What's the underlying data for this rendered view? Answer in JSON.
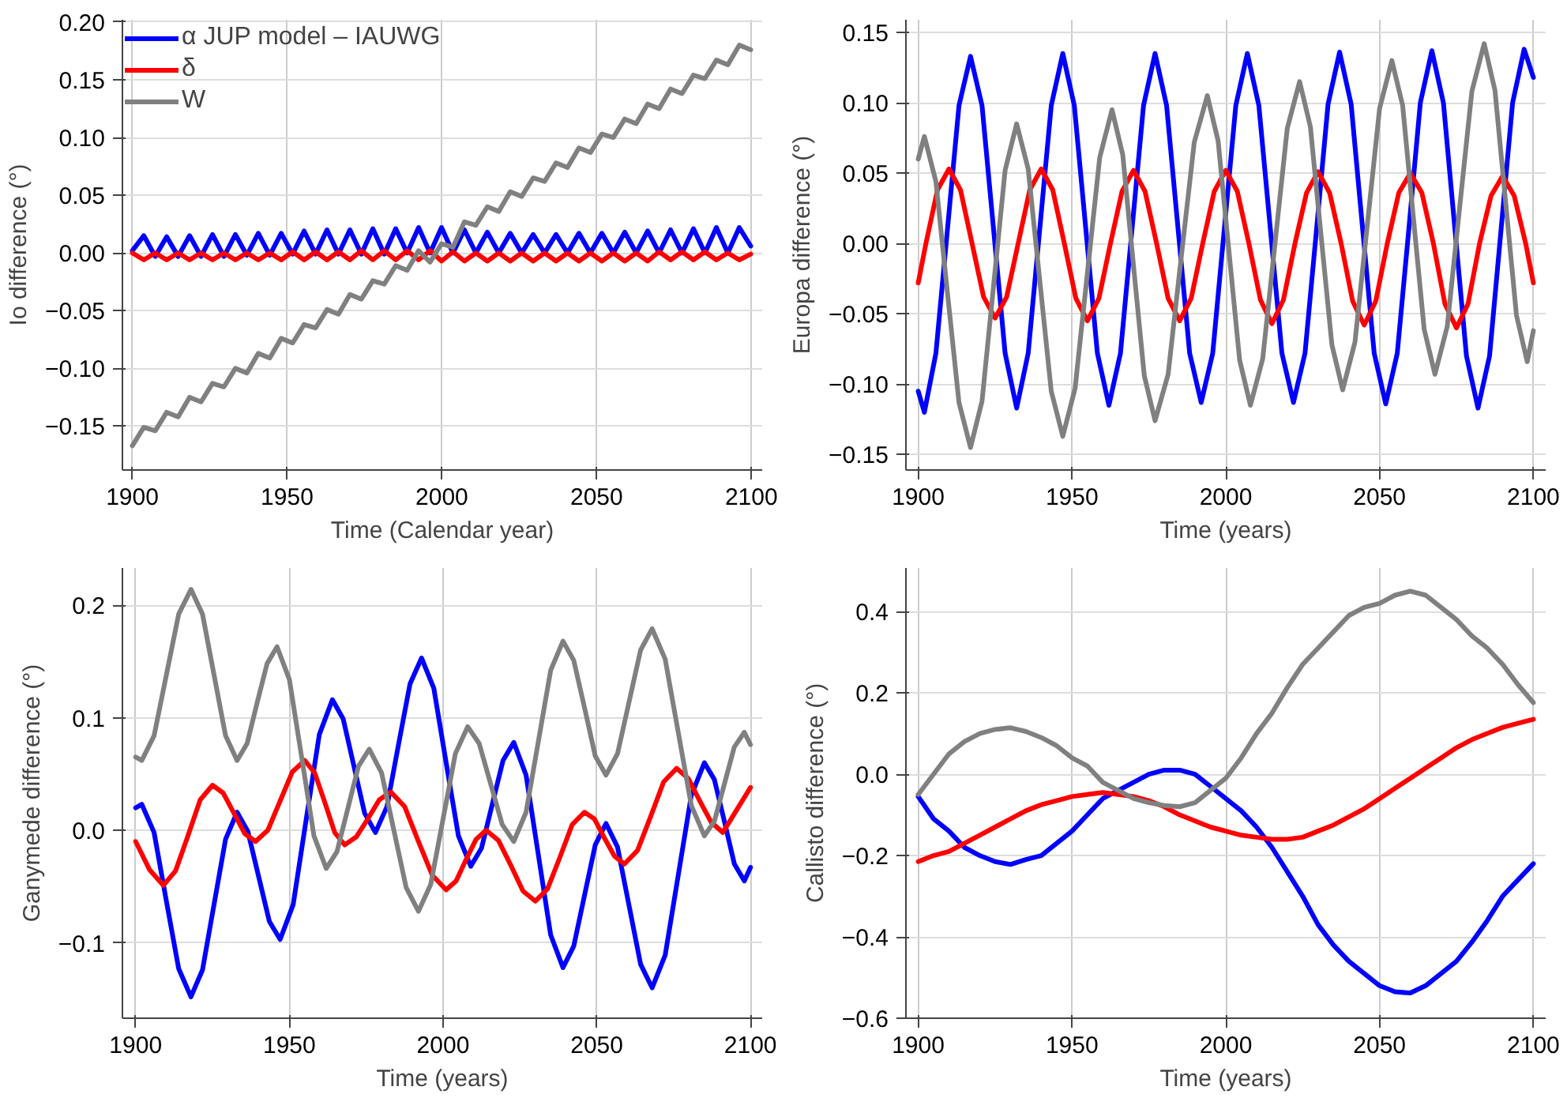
{
  "chart_data": [
    {
      "type": "line",
      "xlabel": "Time (Calendar year)",
      "ylabel": "Io difference (°)",
      "xlim": [
        1896.8,
        2103.5
      ],
      "ylim": [
        -0.188,
        0.202
      ],
      "xticks": [
        1900,
        1950,
        2000,
        2050,
        2100
      ],
      "yticks": [
        {
          "value": -0.15,
          "label": "−0.15"
        },
        {
          "value": -0.1,
          "label": "−0.10"
        },
        {
          "value": -0.05,
          "label": "−0.05"
        },
        {
          "value": 0,
          "label": "0.00"
        },
        {
          "value": 0.05,
          "label": "0.05"
        },
        {
          "value": 0.1,
          "label": "0.10"
        },
        {
          "value": 0.15,
          "label": "0.15"
        },
        {
          "value": 0.2,
          "label": "0.20"
        }
      ],
      "grid": true,
      "legend": "top left",
      "x": [
        1900,
        1903.7,
        1907.4,
        1911.1,
        1914.8,
        1918.5,
        1922.2,
        1925.9,
        1929.6,
        1933.3,
        1937,
        1940.7,
        1944.4,
        1948.1,
        1951.8,
        1955.5,
        1959.2,
        1962.9,
        1966.6,
        1970.3,
        1974,
        1977.7,
        1981.4,
        1985.1,
        1988.8,
        1992.5,
        1996.2,
        1999.9,
        2003.6,
        2007.3,
        2011,
        2014.7,
        2018.4,
        2022.1,
        2025.8,
        2029.5,
        2033.2,
        2036.9,
        2040.6,
        2044.3,
        2048,
        2051.7,
        2055.4,
        2059.1,
        2062.8,
        2066.5,
        2070.2,
        2073.9,
        2077.6,
        2081.3,
        2085,
        2088.7,
        2092.4,
        2096.1,
        2099.8
      ],
      "series": [
        {
          "name": "α JUP model – IAUWG",
          "color": "#0000ff",
          "values": [
            0.002,
            0.015,
            -0.003,
            0.014,
            -0.003,
            0.015,
            -0.003,
            0.016,
            -0.003,
            0.016,
            -0.002,
            0.017,
            -0.002,
            0.017,
            -0.001,
            0.019,
            -0.001,
            0.02,
            -0.001,
            0.02,
            -0.001,
            0.021,
            -0.001,
            0.021,
            0.0,
            0.022,
            0.0,
            0.022,
            0.0,
            0.02,
            0.0,
            0.018,
            0.0,
            0.017,
            0.0,
            0.016,
            0.0,
            0.016,
            0.0,
            0.017,
            0.0,
            0.017,
            0.0,
            0.018,
            0.0,
            0.019,
            0.0,
            0.02,
            0.0,
            0.021,
            0.0,
            0.022,
            0.0,
            0.022,
            0.006
          ]
        },
        {
          "name": "δ",
          "color": "#ff0000",
          "values": [
            0.0,
            -0.006,
            0.0,
            -0.006,
            0.0,
            -0.006,
            0.0,
            -0.006,
            0.0,
            -0.006,
            0.0,
            -0.006,
            0.0,
            -0.006,
            0.001,
            -0.006,
            0.001,
            -0.006,
            0.001,
            -0.006,
            0.002,
            -0.006,
            0.002,
            -0.006,
            0.002,
            -0.006,
            0.002,
            -0.007,
            0.001,
            -0.007,
            0.0,
            -0.007,
            0.0,
            -0.007,
            0.0,
            -0.007,
            0.0,
            -0.007,
            0.0,
            -0.007,
            0.0,
            -0.007,
            0.0,
            -0.007,
            0.0,
            -0.007,
            0.001,
            -0.006,
            0.001,
            -0.006,
            0.001,
            -0.006,
            0.0,
            -0.006,
            -0.001
          ]
        },
        {
          "name": "W",
          "color": "#808080",
          "values": [
            -0.167,
            -0.151,
            -0.154,
            -0.138,
            -0.142,
            -0.125,
            -0.129,
            -0.113,
            -0.116,
            -0.1,
            -0.104,
            -0.087,
            -0.091,
            -0.074,
            -0.078,
            -0.062,
            -0.065,
            -0.049,
            -0.053,
            -0.036,
            -0.04,
            -0.024,
            -0.027,
            -0.011,
            -0.015,
            0.002,
            -0.008,
            0.008,
            0.005,
            0.027,
            0.024,
            0.04,
            0.036,
            0.053,
            0.049,
            0.065,
            0.062,
            0.078,
            0.074,
            0.091,
            0.087,
            0.103,
            0.1,
            0.116,
            0.112,
            0.129,
            0.125,
            0.142,
            0.138,
            0.154,
            0.151,
            0.167,
            0.163,
            0.18,
            0.176
          ]
        }
      ]
    },
    {
      "type": "line",
      "xlabel": "Time (years)",
      "ylabel": "Europa difference (°)",
      "xlim": [
        1896,
        2104
      ],
      "ylim": [
        -0.161,
        0.159
      ],
      "xticks": [
        1900,
        1950,
        2000,
        2050,
        2100
      ],
      "yticks": [
        {
          "value": -0.15,
          "label": "−0.15"
        },
        {
          "value": -0.1,
          "label": "−0.10"
        },
        {
          "value": -0.05,
          "label": "−0.05"
        },
        {
          "value": 0,
          "label": "0.00"
        },
        {
          "value": 0.05,
          "label": "0.05"
        },
        {
          "value": 0.1,
          "label": "0.10"
        },
        {
          "value": 0.15,
          "label": "0.15"
        }
      ],
      "grid": true,
      "series": [
        {
          "color": "#0000ff",
          "x": [
            1900,
            1902,
            1905.75,
            1909.5,
            1913.25,
            1917,
            1920.75,
            1924.5,
            1928.25,
            1932,
            1935.75,
            1939.5,
            1943.25,
            1947,
            1950.75,
            1954.5,
            1958.25,
            1962,
            1965.75,
            1969.5,
            1973.25,
            1977,
            1980.75,
            1984.5,
            1988.25,
            1992,
            1995.75,
            1999.5,
            2003.25,
            2007,
            2010.75,
            2014.5,
            2018.25,
            2022,
            2025.75,
            2029.5,
            2033.25,
            2037,
            2040.75,
            2044.5,
            2048.25,
            2052,
            2055.75,
            2059.5,
            2063.25,
            2067,
            2070.75,
            2074.5,
            2078.25,
            2082,
            2085.75,
            2089.5,
            2093.25,
            2097,
            2100
          ],
          "values": [
            -0.105,
            -0.12,
            -0.078,
            0.01,
            0.098,
            0.133,
            0.098,
            0.01,
            -0.078,
            -0.117,
            -0.078,
            0.01,
            0.098,
            0.135,
            0.098,
            0.01,
            -0.078,
            -0.115,
            -0.078,
            0.01,
            0.098,
            0.135,
            0.098,
            0.01,
            -0.078,
            -0.113,
            -0.078,
            0.01,
            0.098,
            0.135,
            0.098,
            0.01,
            -0.078,
            -0.113,
            -0.078,
            0.01,
            0.099,
            0.136,
            0.099,
            0.01,
            -0.078,
            -0.114,
            -0.078,
            0.01,
            0.1,
            0.137,
            0.1,
            0.01,
            -0.08,
            -0.117,
            -0.08,
            0.01,
            0.1,
            0.138,
            0.118
          ]
        },
        {
          "color": "#ff0000",
          "x": [
            1900,
            1902.5,
            1906.25,
            1910,
            1913.75,
            1917.5,
            1921.25,
            1925,
            1928.75,
            1932.5,
            1936.25,
            1940,
            1943.75,
            1947.5,
            1951.25,
            1955,
            1958.75,
            1962.5,
            1966.25,
            1970,
            1973.75,
            1977.5,
            1981.25,
            1985,
            1988.75,
            1992.5,
            1996.25,
            2000,
            2003.75,
            2007.5,
            2011.25,
            2015,
            2018.75,
            2022.5,
            2026.25,
            2030,
            2033.75,
            2037.5,
            2041.25,
            2045,
            2048.75,
            2052.5,
            2056.25,
            2060,
            2063.75,
            2067.5,
            2071.25,
            2075,
            2078.75,
            2082.5,
            2086.25,
            2090,
            2093.75,
            2097.5,
            2100
          ],
          "values": [
            -0.028,
            0.0,
            0.038,
            0.053,
            0.038,
            0.0,
            -0.038,
            -0.053,
            -0.038,
            0.0,
            0.038,
            0.053,
            0.038,
            0.0,
            -0.039,
            -0.055,
            -0.039,
            0.0,
            0.037,
            0.052,
            0.037,
            0.0,
            -0.039,
            -0.055,
            -0.039,
            0.0,
            0.037,
            0.052,
            0.037,
            0.0,
            -0.04,
            -0.057,
            -0.04,
            0.0,
            0.036,
            0.051,
            0.036,
            0.0,
            -0.041,
            -0.058,
            -0.041,
            0.0,
            0.036,
            0.05,
            0.036,
            0.0,
            -0.043,
            -0.06,
            -0.043,
            0.0,
            0.034,
            0.048,
            0.034,
            0.0,
            -0.028
          ]
        },
        {
          "color": "#808080",
          "x": [
            1900,
            1902,
            1905.75,
            1909.5,
            1913.25,
            1917,
            1920.75,
            1924.5,
            1928.25,
            1932,
            1935.75,
            1939.5,
            1943.25,
            1947,
            1951,
            1955,
            1959,
            1963,
            1966.5,
            1970,
            1973.5,
            1977,
            1981.25,
            1985.5,
            1989.75,
            1994,
            1997.5,
            2001,
            2004.5,
            2008,
            2012,
            2016,
            2020,
            2024,
            2027.5,
            2031,
            2034.5,
            2038,
            2042,
            2046,
            2050,
            2054,
            2057.5,
            2061,
            2064.5,
            2068,
            2072,
            2076,
            2080,
            2084,
            2087.5,
            2091,
            2094.5,
            2098,
            2100
          ],
          "values": [
            0.06,
            0.076,
            0.044,
            -0.035,
            -0.113,
            -0.145,
            -0.112,
            -0.03,
            0.052,
            0.085,
            0.053,
            -0.026,
            -0.105,
            -0.137,
            -0.103,
            -0.021,
            0.061,
            0.095,
            0.063,
            -0.016,
            -0.094,
            -0.126,
            -0.093,
            -0.01,
            0.072,
            0.105,
            0.073,
            -0.005,
            -0.083,
            -0.115,
            -0.082,
            0.0,
            0.082,
            0.115,
            0.083,
            0.005,
            -0.072,
            -0.104,
            -0.07,
            0.013,
            0.096,
            0.13,
            0.098,
            0.018,
            -0.061,
            -0.093,
            -0.059,
            0.025,
            0.108,
            0.142,
            0.109,
            0.029,
            -0.051,
            -0.084,
            -0.062
          ]
        }
      ]
    },
    {
      "type": "line",
      "xlabel": "Time (years)",
      "ylabel": "Ganymede difference (°)",
      "xlim": [
        1895.7,
        2103.8
      ],
      "ylim": [
        -0.167,
        0.233
      ],
      "xticks": [
        1900,
        1950,
        2000,
        2050,
        2100
      ],
      "yticks": [
        {
          "value": -0.1,
          "label": "−0.1"
        },
        {
          "value": 0,
          "label": "0.0"
        },
        {
          "value": 0.1,
          "label": "0.1"
        },
        {
          "value": 0.2,
          "label": "0.2"
        }
      ],
      "grid": true,
      "series": [
        {
          "color": "#0000ff",
          "x": [
            1900,
            1902,
            1906,
            1910,
            1914,
            1918,
            1921.75,
            1925.5,
            1929.25,
            1933,
            1936.5,
            1940,
            1943.5,
            1947,
            1951.25,
            1955.5,
            1959.75,
            1964,
            1967.5,
            1971,
            1974.5,
            1978,
            1981.75,
            1985.5,
            1989.25,
            1993,
            1997,
            2001,
            2005,
            2009,
            2012.5,
            2016,
            2019.5,
            2023,
            2027,
            2031,
            2035,
            2039,
            2042.5,
            2046,
            2049.5,
            2053,
            2056.75,
            2060.5,
            2064.25,
            2068,
            2072.25,
            2076.5,
            2080.75,
            2085,
            2088.25,
            2091.5,
            2094.75,
            2098,
            2100
          ],
          "values": [
            0.02,
            0.023,
            -0.002,
            -0.063,
            -0.123,
            -0.148,
            -0.124,
            -0.066,
            -0.008,
            0.016,
            -0.001,
            -0.041,
            -0.081,
            -0.097,
            -0.066,
            0.01,
            0.085,
            0.116,
            0.099,
            0.057,
            0.015,
            -0.002,
            0.021,
            0.076,
            0.13,
            0.153,
            0.126,
            0.06,
            -0.005,
            -0.032,
            -0.016,
            0.023,
            0.062,
            0.078,
            0.049,
            -0.022,
            -0.093,
            -0.122,
            -0.103,
            -0.058,
            -0.013,
            0.006,
            -0.015,
            -0.067,
            -0.119,
            -0.14,
            -0.111,
            -0.04,
            0.031,
            0.06,
            0.045,
            0.008,
            -0.03,
            -0.045,
            -0.033
          ]
        },
        {
          "color": "#ff0000",
          "x": [
            1900,
            1904.5,
            1909,
            1913,
            1917,
            1921,
            1925,
            1928.5,
            1932,
            1935.5,
            1939,
            1943,
            1947,
            1951,
            1955,
            1958.25,
            1961.5,
            1964.75,
            1968,
            1971.75,
            1975.5,
            1979.25,
            1983,
            1987.5,
            1992,
            1996.5,
            2001,
            2004.25,
            2007.5,
            2010.75,
            2014,
            2018,
            2022,
            2026,
            2030,
            2034,
            2038,
            2042,
            2046,
            2049.25,
            2052.5,
            2055.75,
            2059,
            2063.25,
            2067.5,
            2071.75,
            2076,
            2079.75,
            2083.5,
            2087.25,
            2091,
            2095.5,
            2100
          ],
          "values": [
            -0.01,
            -0.035,
            -0.049,
            -0.036,
            -0.005,
            0.027,
            0.04,
            0.033,
            0.015,
            -0.003,
            -0.01,
            0.0,
            0.026,
            0.052,
            0.062,
            0.051,
            0.025,
            -0.002,
            -0.013,
            -0.006,
            0.01,
            0.027,
            0.034,
            0.021,
            -0.01,
            -0.04,
            -0.053,
            -0.045,
            -0.026,
            -0.008,
            0.0,
            -0.009,
            -0.031,
            -0.054,
            -0.063,
            -0.052,
            -0.024,
            0.005,
            0.016,
            0.01,
            -0.007,
            -0.023,
            -0.03,
            -0.018,
            0.012,
            0.043,
            0.055,
            0.046,
            0.026,
            0.007,
            -0.002,
            0.018,
            0.038
          ]
        },
        {
          "color": "#808080",
          "x": [
            1900,
            1902,
            1906,
            1910,
            1914,
            1918,
            1921.75,
            1925.5,
            1929.25,
            1933,
            1936.25,
            1939.5,
            1942.75,
            1946,
            1950,
            1954,
            1958,
            1962,
            1965.5,
            1969,
            1972.5,
            1976,
            1980,
            1984,
            1988,
            1992,
            1996,
            2000,
            2004,
            2008,
            2011.75,
            2015.5,
            2019.25,
            2023,
            2027,
            2031,
            2035,
            2039,
            2042.5,
            2046,
            2049.5,
            2053,
            2056.75,
            2060.5,
            2064.25,
            2068,
            2072.25,
            2076.5,
            2080.75,
            2085,
            2088.25,
            2091.5,
            2094.75,
            2098,
            2100
          ],
          "values": [
            0.065,
            0.062,
            0.084,
            0.138,
            0.192,
            0.214,
            0.192,
            0.138,
            0.084,
            0.062,
            0.077,
            0.113,
            0.148,
            0.163,
            0.134,
            0.065,
            -0.005,
            -0.034,
            -0.019,
            0.019,
            0.057,
            0.072,
            0.051,
            0.0,
            -0.051,
            -0.072,
            -0.048,
            0.01,
            0.068,
            0.092,
            0.077,
            0.041,
            0.005,
            -0.01,
            0.016,
            0.079,
            0.142,
            0.168,
            0.151,
            0.109,
            0.066,
            0.049,
            0.068,
            0.114,
            0.16,
            0.179,
            0.152,
            0.087,
            0.022,
            -0.005,
            0.008,
            0.041,
            0.074,
            0.087,
            0.076
          ]
        }
      ]
    },
    {
      "type": "line",
      "xlabel": "Time (years)",
      "ylabel": "Callisto difference (°)",
      "xlim": [
        1896,
        2104
      ],
      "ylim": [
        -0.6,
        0.507
      ],
      "xticks": [
        1900,
        1950,
        2000,
        2050,
        2100
      ],
      "yticks": [
        {
          "value": -0.6,
          "label": "−0.6"
        },
        {
          "value": -0.4,
          "label": "−0.4"
        },
        {
          "value": -0.2,
          "label": "−0.2"
        },
        {
          "value": 0,
          "label": "0.0"
        },
        {
          "value": 0.2,
          "label": "0.2"
        },
        {
          "value": 0.4,
          "label": "0.4"
        }
      ],
      "grid": true,
      "x": [
        1900,
        1905,
        1910,
        1915,
        1920,
        1925,
        1930,
        1935,
        1940,
        1945,
        1950,
        1955,
        1960,
        1965,
        1970,
        1975,
        1980,
        1985,
        1990,
        1995,
        2000,
        2005,
        2010,
        2015,
        2020,
        2025,
        2030,
        2035,
        2040,
        2045,
        2050,
        2055,
        2060,
        2065,
        2070,
        2075,
        2080,
        2085,
        2090,
        2095,
        2100
      ],
      "series": [
        {
          "color": "#0000ff",
          "values": [
            -0.055,
            -0.11,
            -0.14,
            -0.18,
            -0.2,
            -0.215,
            -0.222,
            -0.21,
            -0.2,
            -0.17,
            -0.14,
            -0.1,
            -0.06,
            -0.04,
            -0.02,
            0.0,
            0.01,
            0.01,
            0.0,
            -0.03,
            -0.06,
            -0.09,
            -0.13,
            -0.18,
            -0.24,
            -0.3,
            -0.37,
            -0.42,
            -0.46,
            -0.49,
            -0.52,
            -0.535,
            -0.538,
            -0.52,
            -0.49,
            -0.46,
            -0.413,
            -0.36,
            -0.3,
            -0.26,
            -0.22
          ]
        },
        {
          "color": "#ff0000",
          "values": [
            -0.215,
            -0.2,
            -0.19,
            -0.17,
            -0.15,
            -0.13,
            -0.11,
            -0.09,
            -0.075,
            -0.065,
            -0.055,
            -0.05,
            -0.045,
            -0.05,
            -0.055,
            -0.065,
            -0.08,
            -0.1,
            -0.115,
            -0.13,
            -0.14,
            -0.15,
            -0.155,
            -0.16,
            -0.16,
            -0.155,
            -0.14,
            -0.125,
            -0.105,
            -0.085,
            -0.06,
            -0.035,
            -0.01,
            0.015,
            0.04,
            0.065,
            0.085,
            0.1,
            0.115,
            0.125,
            0.135
          ]
        },
        {
          "color": "#808080",
          "values": [
            -0.05,
            0.0,
            0.05,
            0.08,
            0.1,
            0.11,
            0.114,
            0.105,
            0.09,
            0.07,
            0.04,
            0.02,
            -0.02,
            -0.04,
            -0.06,
            -0.07,
            -0.077,
            -0.08,
            -0.07,
            -0.04,
            -0.01,
            0.04,
            0.1,
            0.15,
            0.213,
            0.27,
            0.31,
            0.35,
            0.39,
            0.41,
            0.42,
            0.44,
            0.45,
            0.44,
            0.41,
            0.38,
            0.34,
            0.31,
            0.27,
            0.22,
            0.176
          ]
        }
      ]
    }
  ]
}
